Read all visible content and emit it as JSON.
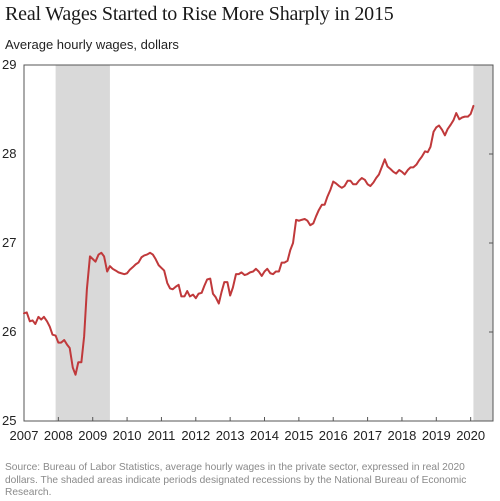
{
  "chart_data": {
    "type": "line",
    "title": "Real Wages Started to Rise More Sharply in 2015",
    "ylabel": "Average hourly wages, dollars",
    "xlabel": "",
    "xlim": [
      2007.0,
      2020.65
    ],
    "ylim": [
      25,
      29
    ],
    "x_ticks": [
      "2007",
      "2008",
      "2009",
      "2010",
      "2011",
      "2012",
      "2013",
      "2014",
      "2015",
      "2016",
      "2017",
      "2018",
      "2019",
      "2020"
    ],
    "y_ticks": [
      "25",
      "26",
      "27",
      "28",
      "29"
    ],
    "grid": false,
    "line_color": "#c0393b",
    "shade_color": "#d9d9d9",
    "recessions": [
      {
        "start": 2007.92,
        "end": 2009.5
      },
      {
        "start": 2020.08,
        "end": 2020.65
      }
    ],
    "series": [
      {
        "points": [
          [
            2007.0,
            26.21
          ],
          [
            2007.08,
            26.22
          ],
          [
            2007.17,
            26.12
          ],
          [
            2007.25,
            26.13
          ],
          [
            2007.33,
            26.09
          ],
          [
            2007.42,
            26.17
          ],
          [
            2007.5,
            26.14
          ],
          [
            2007.58,
            26.17
          ],
          [
            2007.67,
            26.12
          ],
          [
            2007.75,
            26.06
          ],
          [
            2007.83,
            25.97
          ],
          [
            2007.92,
            25.96
          ],
          [
            2008.0,
            25.88
          ],
          [
            2008.08,
            25.88
          ],
          [
            2008.17,
            25.91
          ],
          [
            2008.25,
            25.86
          ],
          [
            2008.33,
            25.82
          ],
          [
            2008.42,
            25.6
          ],
          [
            2008.5,
            25.52
          ],
          [
            2008.58,
            25.66
          ],
          [
            2008.67,
            25.66
          ],
          [
            2008.75,
            25.95
          ],
          [
            2008.83,
            26.48
          ],
          [
            2008.92,
            26.85
          ],
          [
            2009.0,
            26.82
          ],
          [
            2009.08,
            26.79
          ],
          [
            2009.17,
            26.87
          ],
          [
            2009.25,
            26.89
          ],
          [
            2009.33,
            26.85
          ],
          [
            2009.42,
            26.68
          ],
          [
            2009.5,
            26.74
          ],
          [
            2009.58,
            26.71
          ],
          [
            2009.67,
            26.69
          ],
          [
            2009.75,
            26.67
          ],
          [
            2009.83,
            26.66
          ],
          [
            2009.92,
            26.65
          ],
          [
            2010.0,
            26.66
          ],
          [
            2010.08,
            26.7
          ],
          [
            2010.17,
            26.73
          ],
          [
            2010.25,
            26.76
          ],
          [
            2010.33,
            26.78
          ],
          [
            2010.42,
            26.84
          ],
          [
            2010.5,
            26.86
          ],
          [
            2010.58,
            26.87
          ],
          [
            2010.67,
            26.89
          ],
          [
            2010.75,
            26.87
          ],
          [
            2010.83,
            26.82
          ],
          [
            2010.92,
            26.75
          ],
          [
            2011.0,
            26.72
          ],
          [
            2011.08,
            26.69
          ],
          [
            2011.17,
            26.55
          ],
          [
            2011.25,
            26.49
          ],
          [
            2011.33,
            26.48
          ],
          [
            2011.42,
            26.51
          ],
          [
            2011.5,
            26.53
          ],
          [
            2011.58,
            26.4
          ],
          [
            2011.67,
            26.4
          ],
          [
            2011.75,
            26.46
          ],
          [
            2011.83,
            26.4
          ],
          [
            2011.92,
            26.42
          ],
          [
            2012.0,
            26.38
          ],
          [
            2012.08,
            26.43
          ],
          [
            2012.17,
            26.44
          ],
          [
            2012.25,
            26.52
          ],
          [
            2012.33,
            26.59
          ],
          [
            2012.42,
            26.6
          ],
          [
            2012.5,
            26.43
          ],
          [
            2012.58,
            26.39
          ],
          [
            2012.67,
            26.32
          ],
          [
            2012.75,
            26.45
          ],
          [
            2012.83,
            26.56
          ],
          [
            2012.92,
            26.56
          ],
          [
            2013.0,
            26.41
          ],
          [
            2013.08,
            26.5
          ],
          [
            2013.17,
            26.65
          ],
          [
            2013.25,
            26.65
          ],
          [
            2013.33,
            26.67
          ],
          [
            2013.42,
            26.64
          ],
          [
            2013.5,
            26.65
          ],
          [
            2013.58,
            26.67
          ],
          [
            2013.67,
            26.68
          ],
          [
            2013.75,
            26.71
          ],
          [
            2013.83,
            26.68
          ],
          [
            2013.92,
            26.63
          ],
          [
            2014.0,
            26.68
          ],
          [
            2014.08,
            26.71
          ],
          [
            2014.17,
            26.66
          ],
          [
            2014.25,
            26.65
          ],
          [
            2014.33,
            26.68
          ],
          [
            2014.42,
            26.68
          ],
          [
            2014.5,
            26.78
          ],
          [
            2014.58,
            26.78
          ],
          [
            2014.67,
            26.8
          ],
          [
            2014.75,
            26.92
          ],
          [
            2014.83,
            27.0
          ],
          [
            2014.92,
            27.26
          ],
          [
            2015.0,
            27.25
          ],
          [
            2015.08,
            27.26
          ],
          [
            2015.17,
            27.27
          ],
          [
            2015.25,
            27.25
          ],
          [
            2015.33,
            27.2
          ],
          [
            2015.42,
            27.22
          ],
          [
            2015.5,
            27.3
          ],
          [
            2015.58,
            27.37
          ],
          [
            2015.67,
            27.43
          ],
          [
            2015.75,
            27.43
          ],
          [
            2015.83,
            27.52
          ],
          [
            2015.92,
            27.6
          ],
          [
            2016.0,
            27.69
          ],
          [
            2016.08,
            27.67
          ],
          [
            2016.17,
            27.64
          ],
          [
            2016.25,
            27.62
          ],
          [
            2016.33,
            27.64
          ],
          [
            2016.42,
            27.7
          ],
          [
            2016.5,
            27.7
          ],
          [
            2016.58,
            27.66
          ],
          [
            2016.67,
            27.66
          ],
          [
            2016.75,
            27.7
          ],
          [
            2016.83,
            27.73
          ],
          [
            2016.92,
            27.71
          ],
          [
            2017.0,
            27.66
          ],
          [
            2017.08,
            27.64
          ],
          [
            2017.17,
            27.68
          ],
          [
            2017.25,
            27.73
          ],
          [
            2017.33,
            27.77
          ],
          [
            2017.42,
            27.86
          ],
          [
            2017.5,
            27.94
          ],
          [
            2017.58,
            27.86
          ],
          [
            2017.67,
            27.83
          ],
          [
            2017.75,
            27.8
          ],
          [
            2017.83,
            27.78
          ],
          [
            2017.92,
            27.82
          ],
          [
            2018.0,
            27.8
          ],
          [
            2018.08,
            27.77
          ],
          [
            2018.17,
            27.82
          ],
          [
            2018.25,
            27.85
          ],
          [
            2018.33,
            27.85
          ],
          [
            2018.42,
            27.88
          ],
          [
            2018.5,
            27.93
          ],
          [
            2018.58,
            27.97
          ],
          [
            2018.67,
            28.03
          ],
          [
            2018.75,
            28.02
          ],
          [
            2018.83,
            28.08
          ],
          [
            2018.92,
            28.25
          ],
          [
            2019.0,
            28.3
          ],
          [
            2019.08,
            28.32
          ],
          [
            2019.17,
            28.27
          ],
          [
            2019.25,
            28.21
          ],
          [
            2019.33,
            28.28
          ],
          [
            2019.42,
            28.33
          ],
          [
            2019.5,
            28.38
          ],
          [
            2019.58,
            28.46
          ],
          [
            2019.67,
            28.39
          ],
          [
            2019.75,
            28.41
          ],
          [
            2019.83,
            28.42
          ],
          [
            2019.92,
            28.42
          ],
          [
            2020.0,
            28.45
          ],
          [
            2020.08,
            28.54
          ]
        ]
      }
    ]
  },
  "source_note": "Source: Bureau of Labor Statistics, average hourly wages in the private sector, expressed in real 2020 dollars. The shaded areas indicate periods designated recessions by the National Bureau of Economic Research."
}
